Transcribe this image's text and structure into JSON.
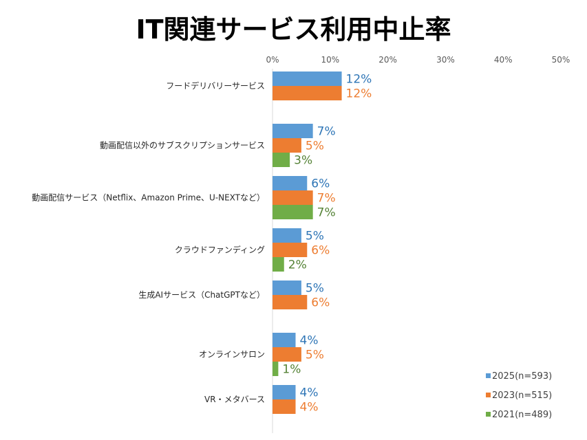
{
  "chart_data": {
    "type": "bar",
    "orientation": "horizontal",
    "title": "IT関連サービス利用中止率",
    "xlim": [
      0,
      50
    ],
    "xticks": [
      "0%",
      "10%",
      "20%",
      "30%",
      "40%",
      "50%"
    ],
    "grid": false,
    "legend_position": "bottom-right",
    "categories": [
      "フードデリバリーサービス",
      "動画配信以外のサブスクリプションサービス",
      "動画配信サービス（Netflix、Amazon Prime、U-NEXTなど）",
      "クラウドファンディング",
      "生成AIサービス（ChatGPTなど）",
      "オンラインサロン",
      "VR・メタバース"
    ],
    "series": [
      {
        "name": "2025(n=593)",
        "color": "#5B9BD5",
        "label_color": "#2E75B6",
        "values": [
          12,
          7,
          6,
          5,
          5,
          4,
          4
        ]
      },
      {
        "name": "2023(n=515)",
        "color": "#ED7D31",
        "label_color": "#ED7D31",
        "values": [
          12,
          5,
          7,
          6,
          6,
          5,
          4
        ]
      },
      {
        "name": "2021(n=489)",
        "color": "#70AD47",
        "label_color": "#548235",
        "values": [
          null,
          3,
          7,
          2,
          null,
          1,
          null
        ]
      }
    ]
  }
}
